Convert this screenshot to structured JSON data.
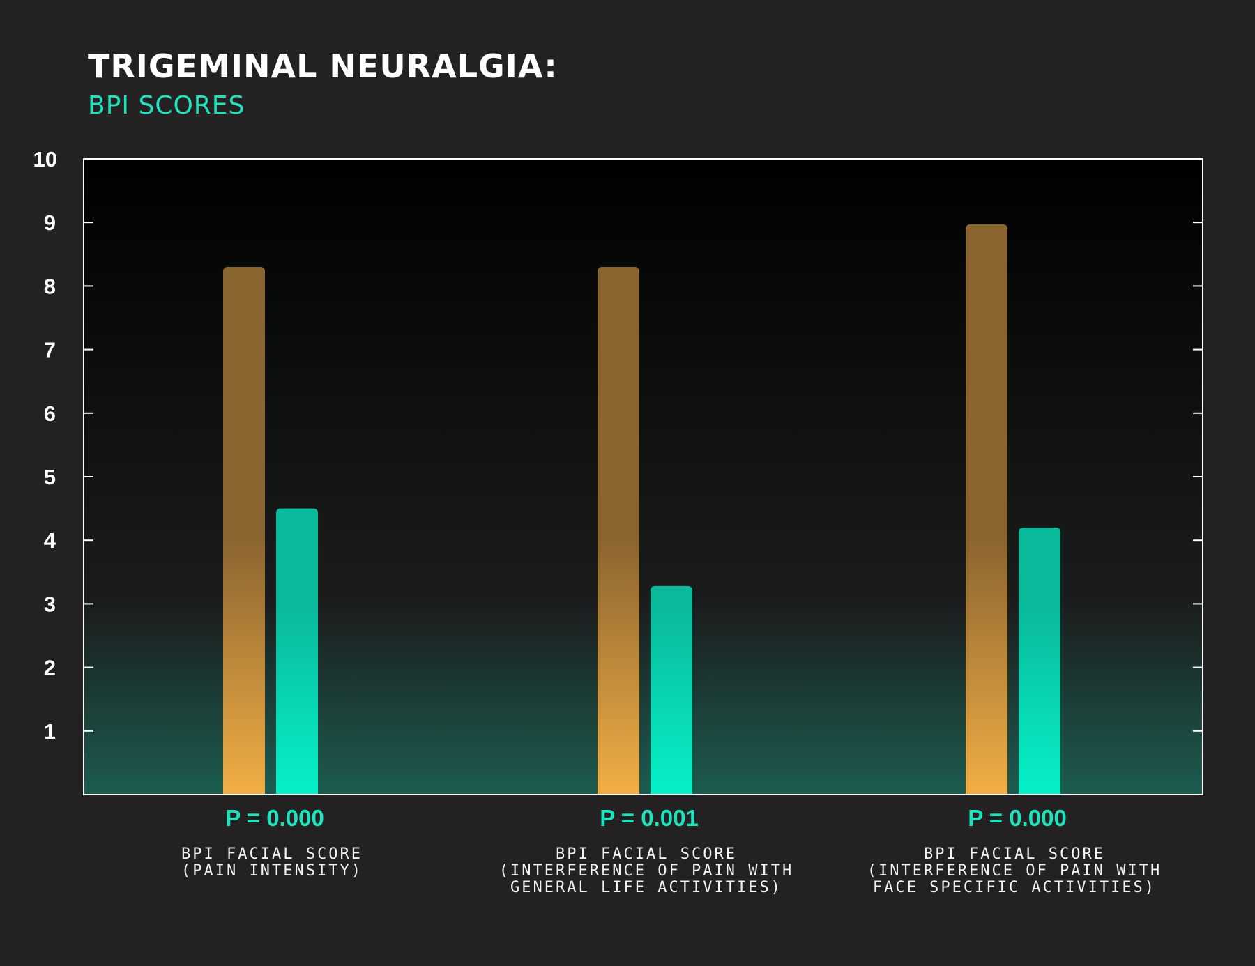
{
  "title": "TRIGEMINAL NEURALGIA:",
  "subtitle": "BPI SCORES",
  "colors": {
    "background": "#232122",
    "series_a": "#f2ae45",
    "series_a_dark": "#8b6530",
    "series_b": "#06f0c9",
    "series_b_dark": "#0ab89a",
    "p_value": "#1ee3bd",
    "axis": "#ffffff"
  },
  "chart_data": {
    "type": "bar",
    "ylim": [
      0,
      10
    ],
    "yticks": [
      "1",
      "2",
      "3",
      "4",
      "5",
      "6",
      "7",
      "8",
      "9",
      "10"
    ],
    "grid": false,
    "categories": [
      {
        "p_value": "P = 0.000",
        "label_lines": [
          "BPI FACIAL SCORE",
          "(PAIN INTENSITY)"
        ]
      },
      {
        "p_value": "P = 0.001",
        "label_lines": [
          "BPI FACIAL SCORE",
          "(INTERFERENCE OF PAIN WITH",
          "GENERAL LIFE ACTIVITIES)"
        ]
      },
      {
        "p_value": "P = 0.000",
        "label_lines": [
          "BPI FACIAL SCORE",
          "(INTERFERENCE OF PAIN WITH",
          "FACE SPECIFIC ACTIVITIES)"
        ]
      }
    ],
    "series": [
      {
        "values": [
          8.3,
          8.3,
          8.97
        ]
      },
      {
        "values": [
          4.5,
          3.28,
          4.2
        ]
      }
    ]
  }
}
